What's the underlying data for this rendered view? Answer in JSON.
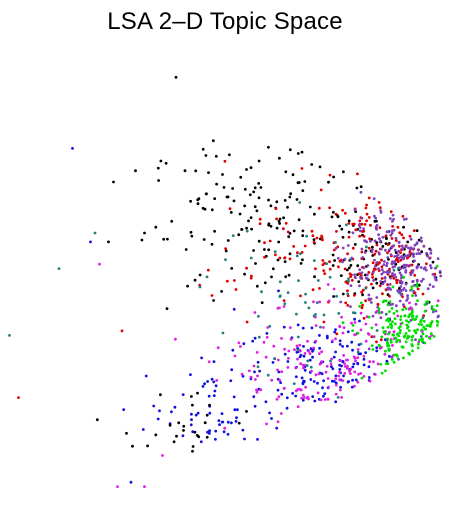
{
  "chart_data": {
    "type": "scatter",
    "title": "LSA 2–D Topic Space",
    "xlabel": "",
    "ylabel": "",
    "xlim": [
      0,
      1
    ],
    "ylim": [
      0,
      1
    ],
    "axes_visible": false,
    "grid": false,
    "legend": "none",
    "series": [
      {
        "color": "#000000"
      },
      {
        "color": "#e00000"
      },
      {
        "color": "#1010e0"
      },
      {
        "color": "#e020e0"
      },
      {
        "color": "#00e000"
      },
      {
        "color": "#208080"
      },
      {
        "color": "#8040c0"
      }
    ],
    "point_groups": [
      {
        "series": 0,
        "count": 160,
        "center": [
          0.6,
          0.63
        ],
        "spread": [
          0.14,
          0.09
        ]
      },
      {
        "series": 0,
        "count": 70,
        "center": [
          0.85,
          0.56
        ],
        "spread": [
          0.06,
          0.06
        ]
      },
      {
        "series": 1,
        "count": 180,
        "center": [
          0.82,
          0.54
        ],
        "spread": [
          0.08,
          0.07
        ]
      },
      {
        "series": 1,
        "count": 40,
        "center": [
          0.6,
          0.58
        ],
        "spread": [
          0.12,
          0.08
        ]
      },
      {
        "series": 6,
        "count": 260,
        "center": [
          0.88,
          0.52
        ],
        "spread": [
          0.06,
          0.06
        ]
      },
      {
        "series": 2,
        "count": 140,
        "center": [
          0.72,
          0.3
        ],
        "spread": [
          0.1,
          0.06
        ]
      },
      {
        "series": 2,
        "count": 60,
        "center": [
          0.48,
          0.2
        ],
        "spread": [
          0.08,
          0.05
        ]
      },
      {
        "series": 3,
        "count": 180,
        "center": [
          0.74,
          0.3
        ],
        "spread": [
          0.12,
          0.07
        ]
      },
      {
        "series": 4,
        "count": 170,
        "center": [
          0.9,
          0.36
        ],
        "spread": [
          0.05,
          0.05
        ]
      },
      {
        "series": 5,
        "count": 70,
        "center": [
          0.72,
          0.45
        ],
        "spread": [
          0.14,
          0.1
        ]
      },
      {
        "series": 0,
        "count": 25,
        "center": [
          0.42,
          0.17
        ],
        "spread": [
          0.07,
          0.04
        ]
      }
    ],
    "outliers": [
      {
        "series": 0,
        "x": 0.38,
        "y": 0.95
      },
      {
        "series": 2,
        "x": 0.15,
        "y": 0.79
      },
      {
        "series": 5,
        "x": 0.12,
        "y": 0.52
      },
      {
        "series": 5,
        "x": 0.01,
        "y": 0.37
      },
      {
        "series": 1,
        "x": 0.03,
        "y": 0.23
      },
      {
        "series": 3,
        "x": 0.25,
        "y": 0.03
      },
      {
        "series": 2,
        "x": 0.28,
        "y": 0.04
      },
      {
        "series": 3,
        "x": 0.31,
        "y": 0.03
      },
      {
        "series": 0,
        "x": 0.29,
        "y": 0.74
      },
      {
        "series": 0,
        "x": 0.4,
        "y": 0.74
      },
      {
        "series": 5,
        "x": 0.2,
        "y": 0.6
      },
      {
        "series": 0,
        "x": 0.23,
        "y": 0.58
      },
      {
        "series": 0,
        "x": 0.31,
        "y": 0.6
      },
      {
        "series": 3,
        "x": 0.21,
        "y": 0.53
      },
      {
        "series": 2,
        "x": 0.19,
        "y": 0.58
      },
      {
        "series": 1,
        "x": 0.26,
        "y": 0.38
      },
      {
        "series": 0,
        "x": 0.36,
        "y": 0.43
      },
      {
        "series": 0,
        "x": 0.27,
        "y": 0.15
      },
      {
        "series": 3,
        "x": 0.35,
        "y": 0.1
      }
    ]
  }
}
